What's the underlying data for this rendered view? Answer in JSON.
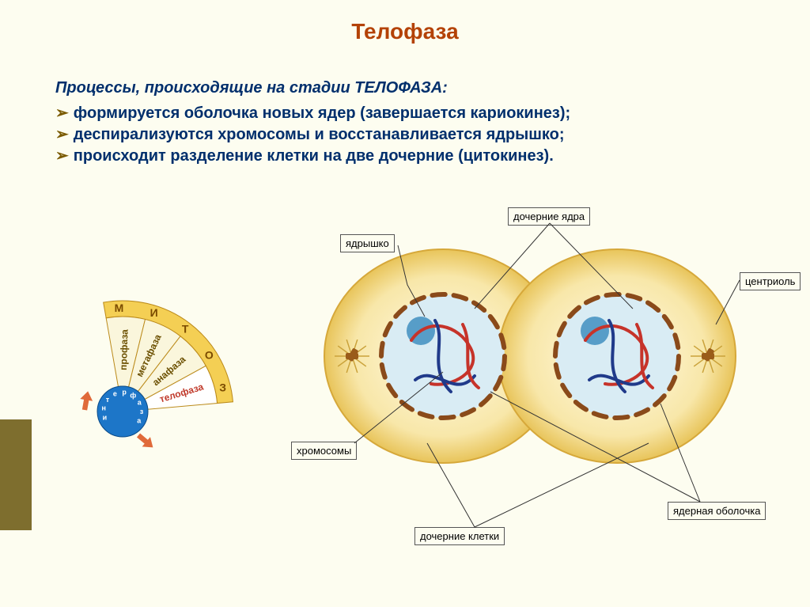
{
  "title": {
    "text": "Телофаза",
    "color": "#b44206",
    "fontsize": 28
  },
  "subtitle": {
    "text": "Процессы, происходящие на стадии ТЕЛОФАЗА:",
    "color": "#002f6c"
  },
  "bullets": {
    "arrow_color": "#7a5a00",
    "text_color": "#002f6c",
    "items": [
      "формируется оболочка новых ядер (завершается кариокинез);",
      "деспирализуются хромосомы и восстанавливается ядрышко;",
      "происходит разделение клетки на две дочерние (цитокинез)."
    ]
  },
  "fan": {
    "outer_label": "М  И  Т  О  З",
    "outer_color": "#f4cf54",
    "sectors": [
      "профаза",
      "метафаза",
      "анафаза",
      "телофаза"
    ],
    "sector_highlight_color": "#c03a2b",
    "sector_text_color": "#6b4f00",
    "interphase_label": "и н т е р ф а з а",
    "interphase_color": "#1d76c8",
    "arrow_color": "#e06a3a",
    "bg_color": "#faf6dc"
  },
  "cell": {
    "cytoplasm_outer": "#f8e7a9",
    "cytoplasm_inner": "#fffbe6",
    "membrane_color": "#d6a83a",
    "nucleus_fill": "#d9ecf4",
    "nucleus_rim_segment": "#8a4a1a",
    "nucleolus_color": "#3f8fbf",
    "chromatin_red": "#c6332a",
    "chromatin_blue": "#203a8a",
    "centriole_body": "#9a5c1a",
    "centriole_ray": "#caa23a"
  },
  "labels": {
    "nucleolus": "ядрышко",
    "daughter_nuclei": "дочерние ядра",
    "centriole": "центриоль",
    "chromosomes": "хромосомы",
    "daughter_cells": "дочерние клетки",
    "nuclear_envelope": "ядерная оболочка"
  },
  "colors": {
    "page_bg": "#fdfdf0",
    "sidebar": "#7e6e2e",
    "leader_line": "#333333",
    "label_border": "#555555"
  }
}
